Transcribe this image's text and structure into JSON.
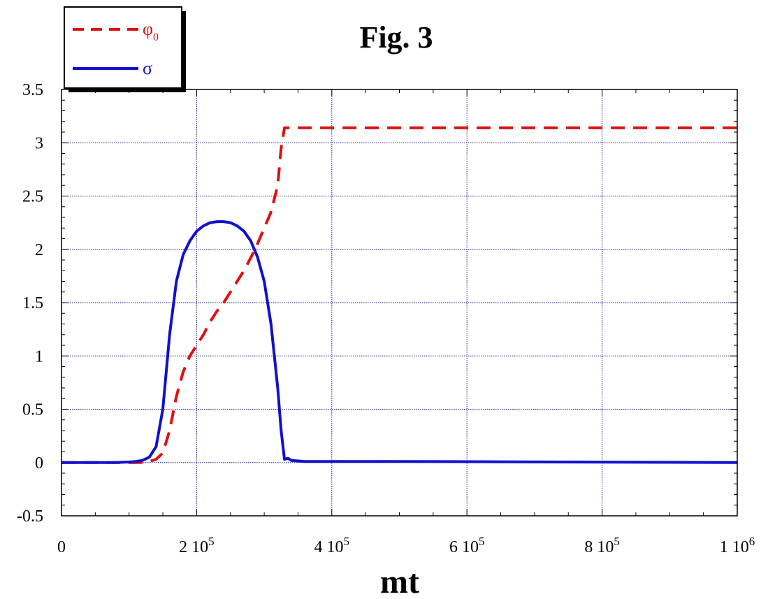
{
  "chart_data": {
    "type": "line",
    "title": "Fig. 3",
    "xlabel": "mt",
    "ylabel": "",
    "xlim": [
      0,
      1000000
    ],
    "ylim": [
      -0.5,
      3.5
    ],
    "grid": true,
    "legend_position": "top-left",
    "x_ticks": [
      0,
      200000,
      400000,
      600000,
      800000,
      1000000
    ],
    "x_tick_labels": [
      {
        "base": "0",
        "exp": ""
      },
      {
        "base": "2 10",
        "exp": "5"
      },
      {
        "base": "4 10",
        "exp": "5"
      },
      {
        "base": "6 10",
        "exp": "5"
      },
      {
        "base": "8 10",
        "exp": "5"
      },
      {
        "base": "1 10",
        "exp": "6"
      }
    ],
    "y_ticks": [
      -0.5,
      0,
      0.5,
      1,
      1.5,
      2,
      2.5,
      3,
      3.5
    ],
    "y_tick_labels": [
      "-0.5",
      "0",
      "0.5",
      "1",
      "1.5",
      "2",
      "2.5",
      "3",
      "3.5"
    ],
    "series": [
      {
        "name": "φ",
        "name_sub": "0",
        "color": "#dd1111",
        "style": "dashed",
        "x": [
          0,
          100000,
          120000,
          130000,
          140000,
          150000,
          160000,
          170000,
          180000,
          190000,
          200000,
          210000,
          220000,
          230000,
          240000,
          250000,
          260000,
          270000,
          280000,
          290000,
          300000,
          310000,
          320000,
          325000,
          330000,
          335000,
          400000,
          600000,
          800000,
          1000000
        ],
        "values": [
          0,
          0,
          0,
          0.01,
          0.03,
          0.09,
          0.3,
          0.62,
          0.85,
          1.0,
          1.1,
          1.2,
          1.32,
          1.42,
          1.5,
          1.6,
          1.7,
          1.8,
          1.92,
          2.05,
          2.2,
          2.35,
          2.6,
          2.95,
          3.14,
          3.14,
          3.14,
          3.14,
          3.14,
          3.14
        ]
      },
      {
        "name": "σ",
        "name_sub": "",
        "color": "#1111cc",
        "style": "solid",
        "x": [
          0,
          80000,
          100000,
          110000,
          120000,
          130000,
          140000,
          150000,
          160000,
          170000,
          180000,
          190000,
          200000,
          210000,
          220000,
          230000,
          240000,
          250000,
          260000,
          270000,
          280000,
          290000,
          300000,
          310000,
          320000,
          325000,
          330000,
          335000,
          340000,
          360000,
          400000,
          500000,
          1000000
        ],
        "values": [
          0,
          0,
          0.005,
          0.01,
          0.02,
          0.05,
          0.15,
          0.5,
          1.2,
          1.7,
          1.95,
          2.08,
          2.17,
          2.22,
          2.25,
          2.26,
          2.26,
          2.25,
          2.22,
          2.17,
          2.08,
          1.93,
          1.7,
          1.3,
          0.7,
          0.3,
          0.03,
          0.04,
          0.02,
          0.01,
          0.01,
          0.01,
          0
        ]
      }
    ]
  }
}
